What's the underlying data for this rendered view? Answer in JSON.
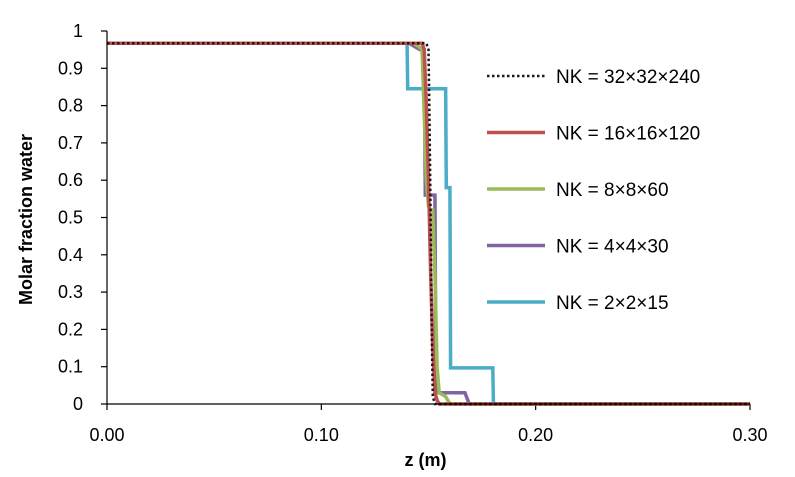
{
  "chart_data": {
    "type": "line",
    "xlabel": "z (m)",
    "ylabel": "Molar fraction water",
    "xlim": [
      0,
      0.3
    ],
    "ylim": [
      0,
      1
    ],
    "x_ticks": [
      0,
      0.1,
      0.2,
      0.3
    ],
    "x_tick_labels": [
      "0.00",
      "0.10",
      "0.20",
      "0.30"
    ],
    "y_ticks": [
      0,
      0.1,
      0.2,
      0.3,
      0.4,
      0.5,
      0.6,
      0.7,
      0.8,
      0.9,
      1
    ],
    "y_tick_labels": [
      "0",
      "0.1",
      "0.2",
      "0.3",
      "0.4",
      "0.5",
      "0.6",
      "0.7",
      "0.8",
      "0.9",
      "1"
    ],
    "grid": false,
    "legend_position": "right",
    "series": [
      {
        "name": "NK = 32×32×240",
        "color": "#1a1a1a",
        "style": "dotted",
        "points": [
          [
            0,
            0.967
          ],
          [
            0.149,
            0.967
          ],
          [
            0.15,
            0.95
          ],
          [
            0.1505,
            0.75
          ],
          [
            0.151,
            0.5
          ],
          [
            0.1515,
            0.2
          ],
          [
            0.152,
            0.02
          ],
          [
            0.153,
            0
          ],
          [
            0.3,
            0
          ]
        ]
      },
      {
        "name": "NK = 16×16×120",
        "color": "#c0504d",
        "style": "solid",
        "points": [
          [
            0,
            0.967
          ],
          [
            0.147,
            0.967
          ],
          [
            0.148,
            0.95
          ],
          [
            0.149,
            0.8
          ],
          [
            0.15,
            0.6
          ],
          [
            0.151,
            0.35
          ],
          [
            0.152,
            0.15
          ],
          [
            0.153,
            0.03
          ],
          [
            0.154,
            0.01
          ],
          [
            0.155,
            0
          ],
          [
            0.3,
            0
          ]
        ]
      },
      {
        "name": "NK = 8×8×60",
        "color": "#9bbb59",
        "style": "solid",
        "points": [
          [
            0,
            0.967
          ],
          [
            0.143,
            0.967
          ],
          [
            0.145,
            0.96
          ],
          [
            0.147,
            0.95
          ],
          [
            0.149,
            0.6
          ],
          [
            0.15,
            0.53
          ],
          [
            0.151,
            0.52
          ],
          [
            0.152,
            0.52
          ],
          [
            0.153,
            0.35
          ],
          [
            0.154,
            0.1
          ],
          [
            0.155,
            0.03
          ],
          [
            0.158,
            0.02
          ],
          [
            0.16,
            0
          ],
          [
            0.3,
            0
          ]
        ]
      },
      {
        "name": "NK = 4×4×30",
        "color": "#8064a2",
        "style": "solid",
        "points": [
          [
            0,
            0.967
          ],
          [
            0.141,
            0.967
          ],
          [
            0.143,
            0.96
          ],
          [
            0.146,
            0.95
          ],
          [
            0.148,
            0.95
          ],
          [
            0.1485,
            0.56
          ],
          [
            0.153,
            0.56
          ],
          [
            0.1535,
            0.03
          ],
          [
            0.157,
            0.03
          ],
          [
            0.1575,
            0.03
          ],
          [
            0.159,
            0.03
          ],
          [
            0.1605,
            0.03
          ],
          [
            0.161,
            0.03
          ],
          [
            0.165,
            0.03
          ],
          [
            0.167,
            0.03
          ],
          [
            0.169,
            0
          ],
          [
            0.3,
            0
          ]
        ]
      },
      {
        "name": "NK = 2×2×15",
        "color": "#4bacc6",
        "style": "solid",
        "points": [
          [
            0,
            0.967
          ],
          [
            0.14,
            0.967
          ],
          [
            0.1403,
            0.845
          ],
          [
            0.158,
            0.845
          ],
          [
            0.1583,
            0.58
          ],
          [
            0.16,
            0.58
          ],
          [
            0.1603,
            0.097
          ],
          [
            0.162,
            0.097
          ],
          [
            0.1623,
            0.097
          ],
          [
            0.18,
            0.097
          ],
          [
            0.1803,
            0
          ],
          [
            0.3,
            0
          ]
        ]
      }
    ]
  }
}
